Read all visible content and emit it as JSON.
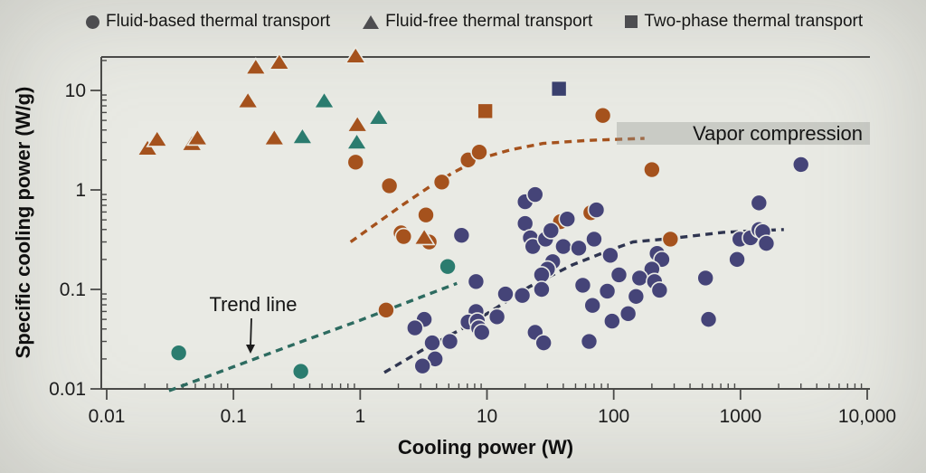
{
  "chart_data": {
    "type": "scatter",
    "title": "",
    "xlabel": "Cooling power (W)",
    "ylabel": "Specific cooling power (W/g)",
    "x_scale": "log",
    "y_scale": "log",
    "x_range": [
      0.01,
      10000
    ],
    "y_range": [
      0.01,
      21.7
    ],
    "grid": false,
    "legend_position": "top",
    "x_ticks": [
      {
        "v": 0.01,
        "label": "0.01"
      },
      {
        "v": 0.1,
        "label": "0.1"
      },
      {
        "v": 1,
        "label": "1"
      },
      {
        "v": 10,
        "label": "10"
      },
      {
        "v": 100,
        "label": "100"
      },
      {
        "v": 1000,
        "label": "1000"
      },
      {
        "v": 10000,
        "label": "10,000"
      }
    ],
    "y_ticks": [
      {
        "v": 0.01,
        "label": "0.01"
      },
      {
        "v": 0.1,
        "label": "0.1"
      },
      {
        "v": 1,
        "label": "1"
      },
      {
        "v": 10,
        "label": "10"
      }
    ],
    "series": [
      {
        "name": "Fluid-based thermal transport",
        "marker": "circle",
        "groups": [
          {
            "color_name": "rust",
            "color": "#a5521d",
            "points": [
              [
                0.92,
                1.9
              ],
              [
                1.7,
                1.1
              ],
              [
                4.4,
                1.2
              ],
              [
                3.3,
                0.56
              ],
              [
                2.1,
                0.37
              ],
              [
                2.2,
                0.34
              ],
              [
                3.5,
                0.3
              ],
              [
                7.1,
                2.0
              ],
              [
                8.7,
                2.4
              ],
              [
                82,
                5.6
              ],
              [
                200,
                1.6
              ],
              [
                38,
                0.48
              ],
              [
                66,
                0.59
              ],
              [
                280,
                0.32
              ],
              [
                1.6,
                0.062
              ]
            ]
          },
          {
            "color_name": "teal",
            "color": "#2b7c6f",
            "points": [
              [
                4.9,
                0.17
              ],
              [
                0.037,
                0.023
              ],
              [
                0.34,
                0.015
              ]
            ]
          },
          {
            "color_name": "navy",
            "color": "#454478",
            "points": [
              [
                20,
                0.76
              ],
              [
                24,
                0.9
              ],
              [
                6.3,
                0.35
              ],
              [
                8.2,
                0.12
              ],
              [
                20,
                0.46
              ],
              [
                22,
                0.33
              ],
              [
                23,
                0.27
              ],
              [
                29,
                0.32
              ],
              [
                32,
                0.39
              ],
              [
                43,
                0.51
              ],
              [
                73,
                0.63
              ],
              [
                40,
                0.27
              ],
              [
                53,
                0.26
              ],
              [
                70,
                0.32
              ],
              [
                33,
                0.19
              ],
              [
                30,
                0.16
              ],
              [
                27,
                0.14
              ],
              [
                27,
                0.1
              ],
              [
                57,
                0.11
              ],
              [
                68,
                0.069
              ],
              [
                89,
                0.096
              ],
              [
                14,
                0.09
              ],
              [
                19,
                0.087
              ],
              [
                3.2,
                0.05
              ],
              [
                2.7,
                0.041
              ],
              [
                8.2,
                0.06
              ],
              [
                7.1,
                0.047
              ],
              [
                8.4,
                0.048
              ],
              [
                8.6,
                0.041
              ],
              [
                9.1,
                0.037
              ],
              [
                12,
                0.053
              ],
              [
                5.1,
                0.03
              ],
              [
                3.7,
                0.029
              ],
              [
                3.9,
                0.02
              ],
              [
                3.1,
                0.017
              ],
              [
                24,
                0.037
              ],
              [
                28,
                0.029
              ],
              [
                64,
                0.03
              ],
              [
                94,
                0.22
              ],
              [
                110,
                0.14
              ],
              [
                150,
                0.085
              ],
              [
                130,
                0.057
              ],
              [
                97,
                0.048
              ],
              [
                220,
                0.23
              ],
              [
                240,
                0.2
              ],
              [
                200,
                0.16
              ],
              [
                160,
                0.13
              ],
              [
                210,
                0.12
              ],
              [
                230,
                0.098
              ],
              [
                530,
                0.13
              ],
              [
                560,
                0.05
              ],
              [
                1400,
                0.74
              ],
              [
                990,
                0.32
              ],
              [
                1200,
                0.33
              ],
              [
                1400,
                0.4
              ],
              [
                1500,
                0.38
              ],
              [
                1600,
                0.29
              ],
              [
                940,
                0.2
              ],
              [
                3000,
                1.8
              ]
            ]
          }
        ]
      },
      {
        "name": "Fluid-free thermal transport",
        "marker": "triangle",
        "groups": [
          {
            "color_name": "rust",
            "color": "#a5521d",
            "points": [
              [
                0.021,
                2.6
              ],
              [
                0.025,
                3.2
              ],
              [
                0.047,
                2.9
              ],
              [
                0.052,
                3.3
              ],
              [
                0.15,
                17
              ],
              [
                0.23,
                19
              ],
              [
                0.13,
                7.8
              ],
              [
                0.21,
                3.3
              ],
              [
                0.92,
                22
              ],
              [
                0.95,
                4.5
              ],
              [
                3.2,
                0.33
              ]
            ]
          },
          {
            "color_name": "teal",
            "color": "#2b7c6f",
            "points": [
              [
                0.52,
                7.8
              ],
              [
                0.35,
                3.4
              ],
              [
                1.4,
                5.3
              ],
              [
                0.94,
                3.0
              ]
            ]
          }
        ]
      },
      {
        "name": "Two-phase thermal transport",
        "marker": "square",
        "groups": [
          {
            "color_name": "rust",
            "color": "#a5521d",
            "points": [
              [
                9.7,
                6.2
              ]
            ]
          },
          {
            "color_name": "navy",
            "color": "#3a406e",
            "points": [
              [
                37,
                10.4
              ]
            ]
          }
        ]
      }
    ],
    "trend_lines": [
      {
        "name": "low-power-trend",
        "color": "#2d6b60",
        "points": [
          [
            0.031,
            0.0096
          ],
          [
            0.3,
            0.028
          ],
          [
            1,
            0.049
          ],
          [
            5.8,
            0.115
          ]
        ]
      },
      {
        "name": "mid-power-trend",
        "color": "#2f3550",
        "points": [
          [
            1.55,
            0.0146
          ],
          [
            3.1,
            0.0246
          ],
          [
            7,
            0.043
          ],
          [
            12,
            0.066
          ],
          [
            21.5,
            0.106
          ],
          [
            47,
            0.176
          ],
          [
            91,
            0.245
          ],
          [
            142,
            0.3
          ],
          [
            283,
            0.325
          ],
          [
            730,
            0.375
          ],
          [
            2200,
            0.4
          ]
        ]
      },
      {
        "name": "vapor-compression-trend",
        "color": "#a5521d",
        "points": [
          [
            0.84,
            0.3
          ],
          [
            1.25,
            0.43
          ],
          [
            2.1,
            0.69
          ],
          [
            3.5,
            1.07
          ],
          [
            5.3,
            1.47
          ],
          [
            8.7,
            2.06
          ],
          [
            15.5,
            2.54
          ],
          [
            27.7,
            2.93
          ],
          [
            63,
            3.15
          ],
          [
            175,
            3.3
          ]
        ]
      }
    ],
    "annotations": [
      {
        "id": "trend-line",
        "text": "Trend line",
        "has_arrow": true
      },
      {
        "id": "vapor-compression",
        "text": "Vapor compression",
        "highlighted": true
      }
    ],
    "colors": {
      "background": "#e9eae4",
      "axis": "#4a4a48",
      "tick_text": "#1c1c1c",
      "legend_marker": "#4d4d50",
      "annotation_highlight": "rgba(150,152,148,0.38)"
    }
  }
}
